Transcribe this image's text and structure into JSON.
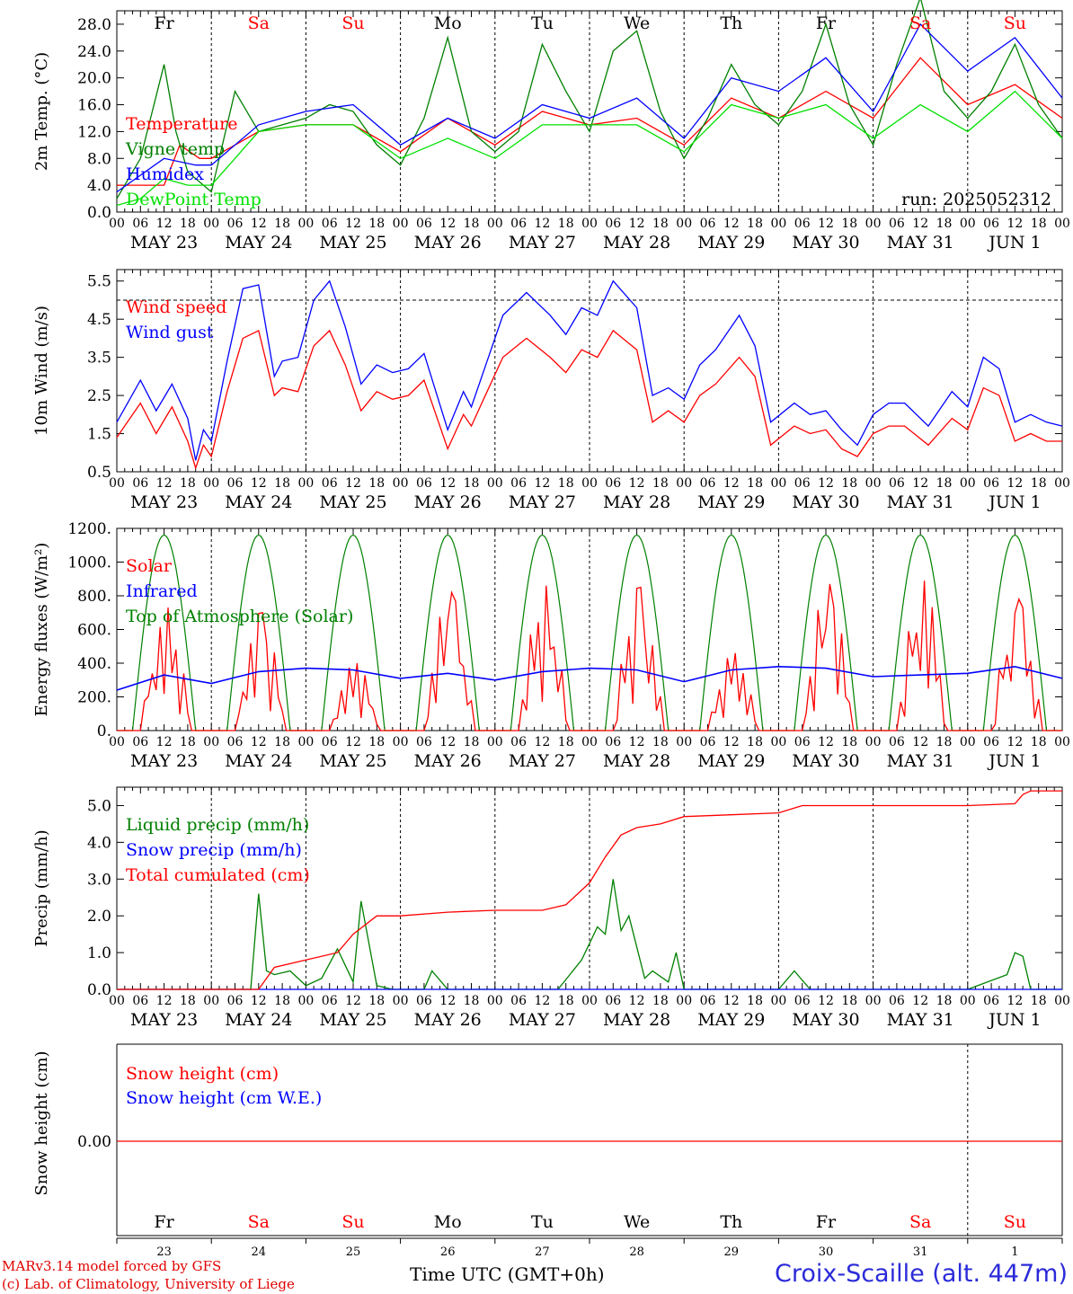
{
  "footer": {
    "credit_line1": "MARv3.14 model forced by GFS",
    "credit_line2": "(c) Lab. of Climatology, University of Liege",
    "xaxis_title": "Time UTC (GMT+0h)",
    "station": "Croix-Scaille (alt. 447m)"
  },
  "colors": {
    "red": "#ff0000",
    "green": "#008000",
    "blue": "#0000ff",
    "lightgreen": "#00e000",
    "weekend": "#ff0000",
    "weekday": "#000000"
  },
  "time_axis": {
    "hour_ticks": [
      "00",
      "06",
      "12",
      "18"
    ],
    "final_tick": "00",
    "dates": [
      "MAY 23",
      "MAY 24",
      "MAY 25",
      "MAY 26",
      "MAY 27",
      "MAY 28",
      "MAY 29",
      "MAY 30",
      "MAY 31",
      "JUN  1"
    ],
    "weekdays": [
      "Fr",
      "Sa",
      "Su",
      "Mo",
      "Tu",
      "We",
      "Th",
      "Fr",
      "Sa",
      "Su"
    ],
    "weekend": [
      false,
      true,
      true,
      false,
      false,
      false,
      false,
      false,
      true,
      true
    ],
    "day_numbers": [
      "23",
      "24",
      "25",
      "26",
      "27",
      "28",
      "29",
      "30",
      "31",
      "1"
    ]
  },
  "chart_data": [
    {
      "id": "temperature",
      "type": "line",
      "ylabel": "2m Temp. (°C)",
      "ylim": [
        0,
        30
      ],
      "yticks": [
        "0.0",
        "4.0",
        "8.0",
        "12.0",
        "16.0",
        "20.0",
        "24.0",
        "28.0"
      ],
      "annotation": "run: 2025052312",
      "legend": [
        "Temperature",
        "Vigne temp",
        "Humidex",
        "DewPoint Temp"
      ],
      "series": [
        {
          "name": "Temperature",
          "color": "red",
          "x": [
            0,
            12,
            16,
            21,
            24,
            36,
            48,
            60,
            72,
            84,
            96,
            108,
            120,
            132,
            144,
            156,
            168,
            180,
            192,
            204,
            216,
            228,
            240
          ],
          "y": [
            4,
            4,
            10,
            8,
            8,
            12,
            13,
            13,
            9,
            14,
            10,
            15,
            13,
            14,
            10,
            17,
            14,
            18,
            14,
            23,
            16,
            19,
            14
          ]
        },
        {
          "name": "Vigne temp",
          "color": "green",
          "x": [
            0,
            6,
            12,
            15,
            18,
            24,
            30,
            36,
            42,
            48,
            54,
            60,
            66,
            72,
            78,
            84,
            90,
            96,
            102,
            108,
            114,
            120,
            126,
            132,
            138,
            144,
            150,
            156,
            162,
            168,
            174,
            180,
            186,
            192,
            198,
            204,
            210,
            216,
            222,
            228,
            234,
            240
          ],
          "y": [
            2,
            8,
            22,
            12,
            6,
            3,
            18,
            12,
            13,
            14,
            16,
            15,
            10,
            7,
            14,
            26,
            12,
            9,
            12,
            25,
            18,
            12,
            24,
            27,
            15,
            8,
            14,
            22,
            16,
            13,
            18,
            28,
            16,
            10,
            22,
            32,
            18,
            14,
            18,
            25,
            16,
            11
          ]
        },
        {
          "name": "Humidex",
          "color": "blue",
          "x": [
            0,
            12,
            20,
            24,
            36,
            48,
            60,
            72,
            84,
            96,
            108,
            120,
            132,
            144,
            156,
            168,
            180,
            192,
            204,
            216,
            228,
            240
          ],
          "y": [
            3,
            8,
            7,
            7,
            13,
            15,
            16,
            10,
            14,
            11,
            16,
            14,
            17,
            11,
            20,
            18,
            23,
            15,
            28,
            21,
            26,
            17
          ]
        },
        {
          "name": "DewPoint Temp",
          "color": "lightgreen",
          "x": [
            0,
            6,
            12,
            18,
            24,
            30,
            36,
            48,
            60,
            72,
            84,
            96,
            108,
            120,
            132,
            144,
            156,
            168,
            180,
            192,
            204,
            216,
            228,
            240
          ],
          "y": [
            1,
            2,
            5,
            4,
            4,
            8,
            12,
            13,
            13,
            8,
            11,
            8,
            13,
            13,
            13,
            9,
            16,
            14,
            16,
            11,
            16,
            12,
            18,
            11
          ]
        }
      ]
    },
    {
      "id": "wind",
      "type": "line",
      "ylabel": "10m Wind (m/s)",
      "ylim": [
        0.5,
        5.8
      ],
      "yticks": [
        "0.5",
        "1.5",
        "2.5",
        "3.5",
        "4.5",
        "5.5"
      ],
      "reference_line": 5.0,
      "legend": [
        "Wind speed",
        "Wind gust"
      ],
      "series": [
        {
          "name": "Wind speed",
          "color": "red",
          "x": [
            0,
            6,
            10,
            14,
            18,
            20,
            22,
            24,
            28,
            32,
            36,
            40,
            42,
            46,
            50,
            54,
            58,
            62,
            66,
            70,
            74,
            78,
            84,
            88,
            90,
            94,
            98,
            104,
            110,
            114,
            118,
            122,
            126,
            132,
            136,
            140,
            144,
            148,
            152,
            158,
            162,
            166,
            172,
            176,
            180,
            184,
            188,
            192,
            196,
            200,
            206,
            212,
            216,
            220,
            224,
            228,
            232,
            236,
            240
          ],
          "y": [
            1.4,
            2.3,
            1.5,
            2.2,
            1.3,
            0.6,
            1.2,
            0.9,
            2.6,
            4.0,
            4.2,
            2.5,
            2.7,
            2.6,
            3.8,
            4.2,
            3.3,
            2.1,
            2.6,
            2.4,
            2.5,
            2.9,
            1.1,
            2.0,
            1.7,
            2.6,
            3.5,
            4.0,
            3.5,
            3.1,
            3.7,
            3.5,
            4.2,
            3.7,
            1.8,
            2.1,
            1.8,
            2.5,
            2.8,
            3.5,
            3.0,
            1.2,
            1.7,
            1.5,
            1.6,
            1.1,
            0.9,
            1.5,
            1.7,
            1.7,
            1.2,
            1.9,
            1.6,
            2.7,
            2.5,
            1.3,
            1.5,
            1.3,
            1.3
          ]
        },
        {
          "name": "Wind gust",
          "color": "blue",
          "x": [
            0,
            6,
            10,
            14,
            18,
            20,
            22,
            24,
            28,
            32,
            36,
            40,
            42,
            46,
            50,
            54,
            58,
            62,
            66,
            70,
            74,
            78,
            84,
            88,
            90,
            94,
            98,
            104,
            110,
            114,
            118,
            122,
            126,
            132,
            136,
            140,
            144,
            148,
            152,
            158,
            162,
            166,
            172,
            176,
            180,
            184,
            188,
            192,
            196,
            200,
            206,
            212,
            216,
            220,
            224,
            228,
            232,
            236,
            240
          ],
          "y": [
            1.8,
            2.9,
            2.1,
            2.8,
            1.9,
            0.8,
            1.6,
            1.3,
            3.4,
            5.3,
            5.4,
            3.0,
            3.4,
            3.5,
            5.0,
            5.5,
            4.3,
            2.8,
            3.3,
            3.1,
            3.2,
            3.6,
            1.6,
            2.6,
            2.2,
            3.4,
            4.6,
            5.2,
            4.6,
            4.1,
            4.8,
            4.6,
            5.5,
            4.8,
            2.5,
            2.7,
            2.4,
            3.3,
            3.7,
            4.6,
            3.8,
            1.8,
            2.3,
            2.0,
            2.1,
            1.6,
            1.2,
            2.0,
            2.3,
            2.3,
            1.7,
            2.6,
            2.2,
            3.5,
            3.2,
            1.8,
            2.0,
            1.8,
            1.7
          ]
        }
      ]
    },
    {
      "id": "energy",
      "type": "line",
      "ylabel": "Energy fluxes (W/m²)",
      "ylim": [
        0,
        1200
      ],
      "yticks": [
        "0.",
        "200.",
        "400.",
        "600.",
        "800.",
        "1000.",
        "1200."
      ],
      "legend": [
        "Solar",
        "Infrared",
        "Top of Atmosphere (Solar)"
      ],
      "toa_peak": 1160,
      "toa_sunrise_hour": 4,
      "toa_sunset_hour": 20,
      "solar_peaks": [
        730,
        700,
        400,
        820,
        860,
        850,
        460,
        870,
        890,
        780
      ],
      "series_infrared": {
        "name": "Infrared",
        "color": "blue",
        "x": [
          0,
          12,
          24,
          36,
          48,
          60,
          72,
          84,
          96,
          108,
          120,
          132,
          144,
          156,
          168,
          180,
          192,
          204,
          216,
          228,
          240
        ],
        "y": [
          240,
          330,
          280,
          350,
          370,
          360,
          310,
          340,
          300,
          350,
          370,
          360,
          290,
          360,
          380,
          370,
          320,
          330,
          340,
          380,
          310
        ]
      }
    },
    {
      "id": "precip",
      "type": "line",
      "ylabel": "Precip (mm/h)",
      "ylim": [
        0,
        5.5
      ],
      "yticks": [
        "0.0",
        "1.0",
        "2.0",
        "3.0",
        "4.0",
        "5.0"
      ],
      "legend": [
        "Liquid precip (mm/h)",
        "Snow precip (mm/h)",
        "Total cumulated (cm)"
      ],
      "series": [
        {
          "name": "Liquid precip (mm/h)",
          "color": "green",
          "x": [
            0,
            34,
            36,
            38,
            40,
            44,
            48,
            52,
            56,
            60,
            62,
            66,
            70,
            78,
            80,
            84,
            96,
            104,
            112,
            118,
            122,
            124,
            126,
            128,
            130,
            134,
            136,
            140,
            142,
            144,
            156,
            168,
            172,
            176,
            216,
            226,
            228,
            230,
            232,
            240
          ],
          "y": [
            0,
            0,
            2.6,
            0.5,
            0.4,
            0.5,
            0.1,
            0.3,
            1.1,
            0.2,
            2.4,
            0.1,
            0,
            0,
            0.5,
            0,
            0,
            0,
            0,
            0.8,
            1.7,
            1.5,
            3.0,
            1.6,
            2.0,
            0.3,
            0.5,
            0.2,
            1.0,
            0,
            0,
            0,
            0.5,
            0,
            0,
            0.4,
            1.0,
            0.9,
            0,
            0
          ]
        },
        {
          "name": "Snow precip (mm/h)",
          "color": "blue",
          "x": [
            0,
            240
          ],
          "y": [
            0,
            0
          ]
        },
        {
          "name": "Total cumulated (cm)",
          "color": "red",
          "x": [
            0,
            36,
            40,
            48,
            56,
            60,
            66,
            72,
            84,
            96,
            108,
            114,
            120,
            124,
            128,
            132,
            138,
            144,
            156,
            168,
            174,
            180,
            192,
            204,
            216,
            228,
            230,
            232,
            240
          ],
          "y": [
            0,
            0,
            0.6,
            0.8,
            1.0,
            1.5,
            2.0,
            2.0,
            2.1,
            2.15,
            2.15,
            2.3,
            2.9,
            3.6,
            4.2,
            4.4,
            4.5,
            4.7,
            4.75,
            4.8,
            5.0,
            5.0,
            5.0,
            5.0,
            5.0,
            5.05,
            5.3,
            5.4,
            5.4
          ]
        }
      ]
    },
    {
      "id": "snow",
      "type": "line",
      "ylabel": "Snow height (cm)",
      "ytick": "0.00",
      "legend": [
        "Snow height (cm)",
        "Snow height (cm W.E.)"
      ],
      "series": [
        {
          "name": "Snow height (cm)",
          "color": "red",
          "x": [
            0,
            240
          ],
          "y": [
            0,
            0
          ]
        }
      ]
    }
  ]
}
